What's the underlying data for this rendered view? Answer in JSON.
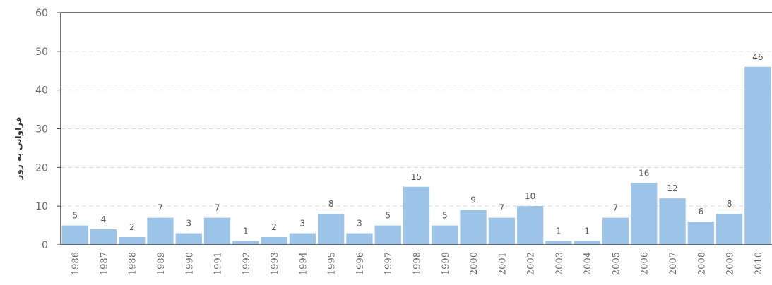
{
  "chart_data": {
    "type": "bar",
    "title": "",
    "xlabel": "",
    "ylabel": "فراوانی به روز",
    "ylim": [
      0,
      60
    ],
    "yticks": [
      0,
      10,
      20,
      30,
      40,
      50,
      60
    ],
    "grid": true,
    "legend": "none",
    "categories": [
      "1986",
      "1987",
      "1988",
      "1989",
      "1990",
      "1991",
      "1992",
      "1993",
      "1994",
      "1995",
      "1996",
      "1997",
      "1998",
      "1999",
      "2000",
      "2001",
      "2002",
      "2003",
      "2004",
      "2005",
      "2006",
      "2007",
      "2008",
      "2009",
      "2010"
    ],
    "series": [
      {
        "values": [
          5,
          4,
          2,
          7,
          3,
          7,
          1,
          2,
          3,
          8,
          3,
          5,
          15,
          5,
          9,
          7,
          10,
          1,
          1,
          7,
          16,
          12,
          6,
          8,
          46
        ]
      }
    ],
    "bar_color": "#9dc3e6",
    "axis_color": "#666666",
    "grid_color": "#d9d9d9"
  }
}
